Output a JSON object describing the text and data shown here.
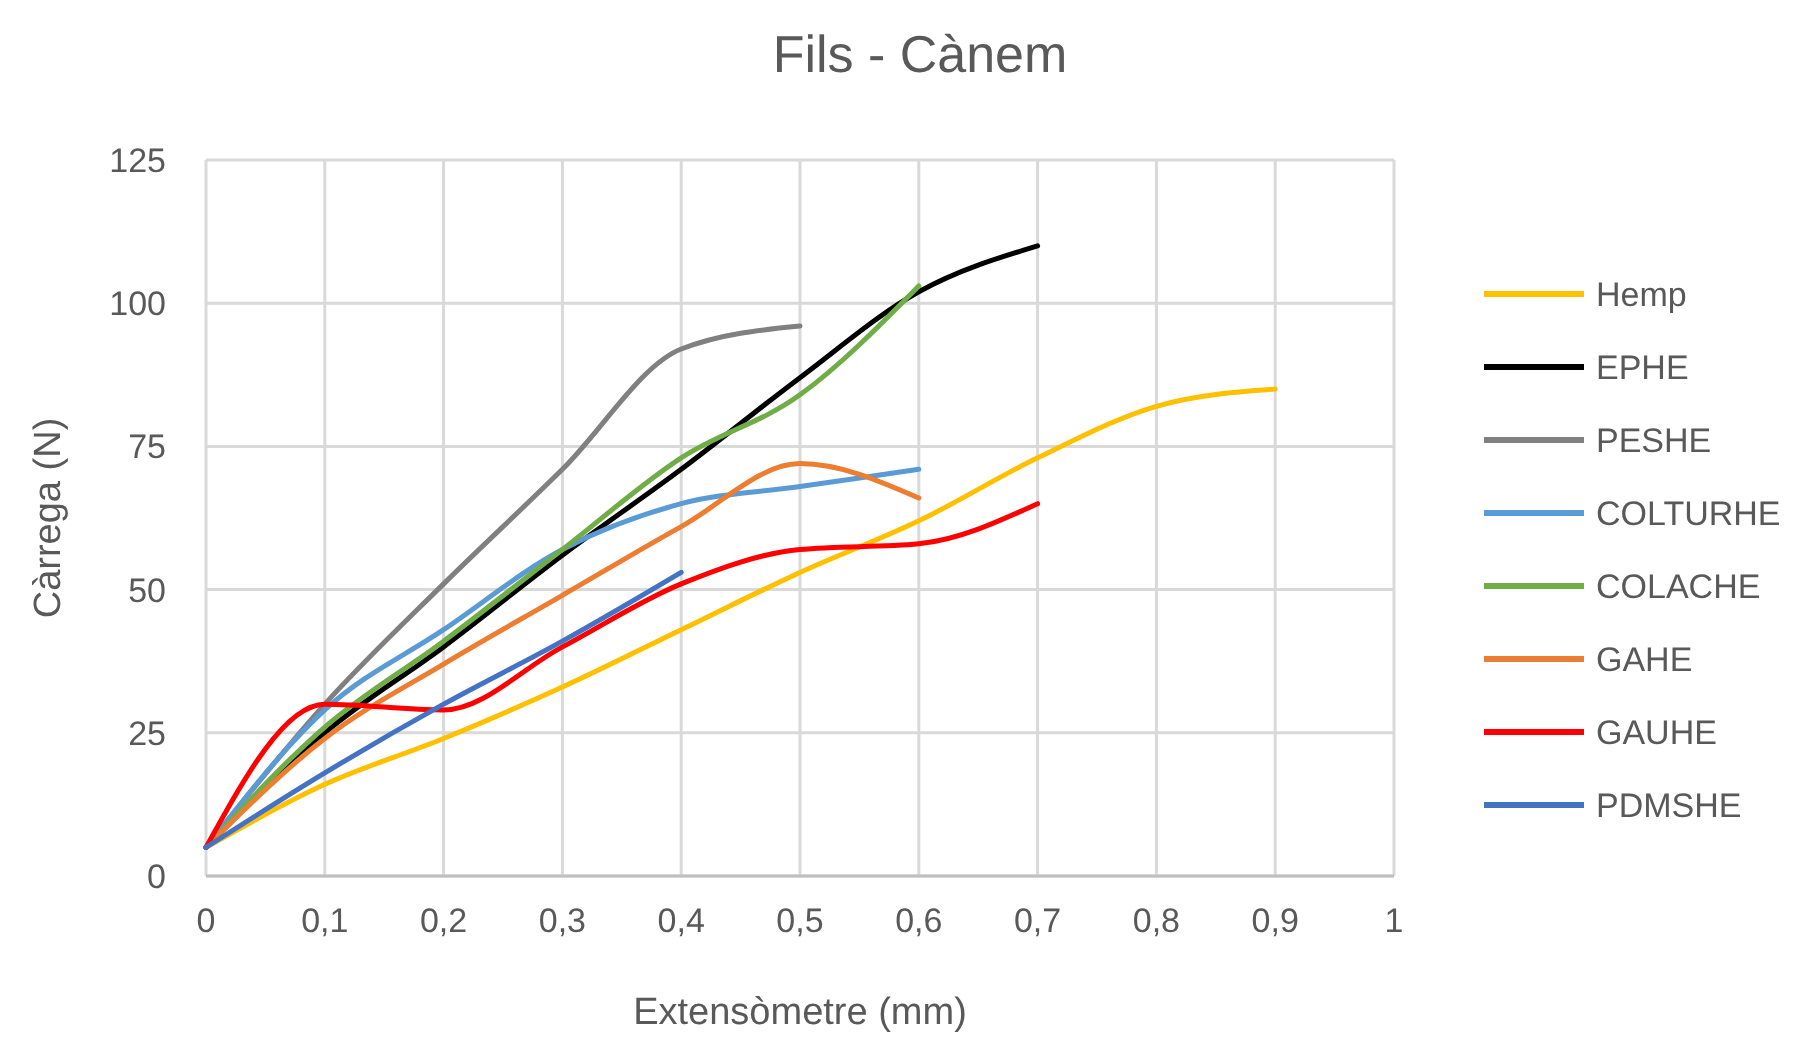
{
  "chart_data": {
    "type": "line",
    "title": "Fils - Cànem",
    "xlabel": "Extensòmetre (mm)",
    "ylabel": "Càrrega (N)",
    "x": [
      0,
      0.1,
      0.2,
      0.3,
      0.4,
      0.5,
      0.6,
      0.7,
      0.8,
      0.9
    ],
    "series": [
      {
        "name": "Hemp",
        "color": "#ffc000",
        "values": [
          5,
          16,
          24,
          33,
          43,
          53,
          62,
          73,
          82,
          85
        ]
      },
      {
        "name": "EPHE",
        "color": "#000000",
        "values": [
          5,
          25,
          40,
          56,
          71,
          87,
          102,
          110,
          null,
          null
        ]
      },
      {
        "name": "PESHE",
        "color": "#808080",
        "values": [
          5,
          30,
          51,
          71,
          92,
          96,
          null,
          null,
          null,
          null
        ]
      },
      {
        "name": "COLTURHE",
        "color": "#5b9bd5",
        "values": [
          5,
          29,
          43,
          57,
          65,
          68,
          71,
          null,
          null,
          null
        ]
      },
      {
        "name": "COLACHE",
        "color": "#70ad47",
        "values": [
          5,
          26,
          41,
          57,
          73,
          84,
          103,
          null,
          null,
          null
        ]
      },
      {
        "name": "GAHE",
        "color": "#ed7d31",
        "values": [
          5,
          24,
          37,
          49,
          61,
          72,
          66,
          null,
          null,
          null
        ]
      },
      {
        "name": "GAUHE",
        "color": "#ff0000",
        "values": [
          5,
          30,
          29,
          40,
          51,
          57,
          58,
          65,
          null,
          null
        ]
      },
      {
        "name": "PDMSHE",
        "color": "#4472c4",
        "values": [
          5,
          18,
          30,
          41,
          53,
          null,
          null,
          null,
          null,
          null
        ]
      }
    ],
    "xlim": [
      0,
      1
    ],
    "xticks": [
      0,
      {
        "value": 0.1,
        "label": "0,1"
      },
      {
        "value": 0.2,
        "label": "0,2"
      },
      {
        "value": 0.3,
        "label": "0,3"
      },
      {
        "value": 0.4,
        "label": "0,4"
      },
      {
        "value": 0.5,
        "label": "0,5"
      },
      {
        "value": 0.6,
        "label": "0,6"
      },
      {
        "value": 0.7,
        "label": "0,7"
      },
      {
        "value": 0.8,
        "label": "0,8"
      },
      {
        "value": 0.9,
        "label": "0,9"
      },
      1
    ],
    "ylim": [
      0,
      125
    ],
    "yticks": [
      0,
      25,
      50,
      75,
      100,
      125
    ],
    "grid": true,
    "legend": "right"
  }
}
